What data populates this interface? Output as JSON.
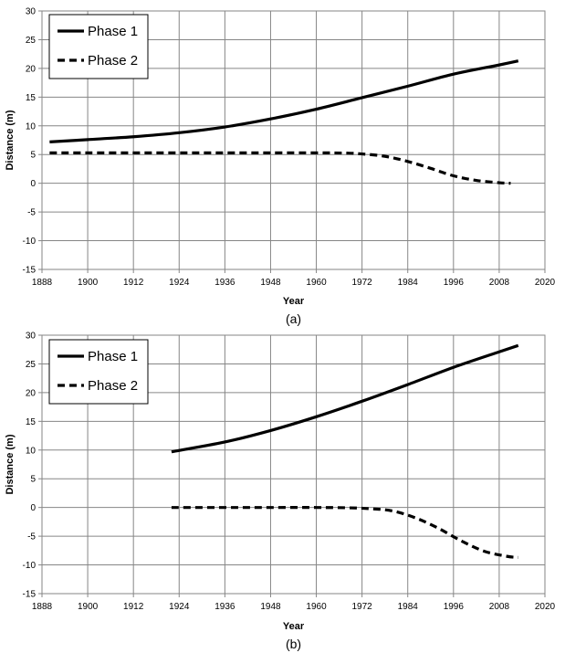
{
  "chart_data": [
    {
      "type": "line",
      "caption": "(a)",
      "xlabel": "Year",
      "ylabel": "Distance (m)",
      "xlim": [
        1888,
        2020
      ],
      "ylim": [
        -15,
        30
      ],
      "x_ticks": [
        "1888",
        "1900",
        "1912",
        "1924",
        "1936",
        "1948",
        "1960",
        "1972",
        "1984",
        "1996",
        "2008",
        "2020"
      ],
      "y_ticks": [
        "30",
        "25",
        "20",
        "15",
        "10",
        "5",
        "0",
        "-5",
        "-10",
        "-15"
      ],
      "grid": true,
      "legend_position": "top-left",
      "series": [
        {
          "name": "Phase 1",
          "style": "solid",
          "color": "#000000",
          "x": [
            1890,
            1900,
            1912,
            1924,
            1936,
            1948,
            1960,
            1972,
            1984,
            1996,
            2008,
            2013
          ],
          "y": [
            7.2,
            7.6,
            8.1,
            8.8,
            9.8,
            11.2,
            12.9,
            14.9,
            16.9,
            19.0,
            20.6,
            21.3
          ]
        },
        {
          "name": "Phase 2",
          "style": "dashed",
          "color": "#000000",
          "x": [
            1890,
            1900,
            1912,
            1924,
            1936,
            1948,
            1960,
            1968,
            1972,
            1978,
            1984,
            1990,
            1996,
            2002,
            2008,
            2011
          ],
          "y": [
            5.3,
            5.3,
            5.3,
            5.3,
            5.3,
            5.3,
            5.3,
            5.25,
            5.1,
            4.7,
            3.8,
            2.6,
            1.3,
            0.5,
            0.1,
            0.0
          ]
        }
      ]
    },
    {
      "type": "line",
      "caption": "(b)",
      "xlabel": "Year",
      "ylabel": "Distance (m)",
      "xlim": [
        1888,
        2020
      ],
      "ylim": [
        -15,
        30
      ],
      "x_ticks": [
        "1888",
        "1900",
        "1912",
        "1924",
        "1936",
        "1948",
        "1960",
        "1972",
        "1984",
        "1996",
        "2008",
        "2020"
      ],
      "y_ticks": [
        "30",
        "25",
        "20",
        "15",
        "10",
        "5",
        "0",
        "-5",
        "-10",
        "-15"
      ],
      "grid": true,
      "legend_position": "top-left",
      "series": [
        {
          "name": "Phase 1",
          "style": "solid",
          "color": "#000000",
          "x": [
            1922,
            1936,
            1948,
            1960,
            1972,
            1984,
            1996,
            2008,
            2013
          ],
          "y": [
            9.7,
            11.4,
            13.4,
            15.8,
            18.5,
            21.4,
            24.4,
            27.1,
            28.2
          ]
        },
        {
          "name": "Phase 2",
          "style": "dashed",
          "color": "#000000",
          "x": [
            1922,
            1936,
            1948,
            1960,
            1968,
            1974,
            1980,
            1986,
            1992,
            1998,
            2004,
            2010,
            2013
          ],
          "y": [
            0.0,
            0.0,
            0.0,
            0.0,
            -0.05,
            -0.2,
            -0.6,
            -1.8,
            -3.6,
            -5.8,
            -7.6,
            -8.5,
            -8.7
          ]
        }
      ]
    }
  ]
}
